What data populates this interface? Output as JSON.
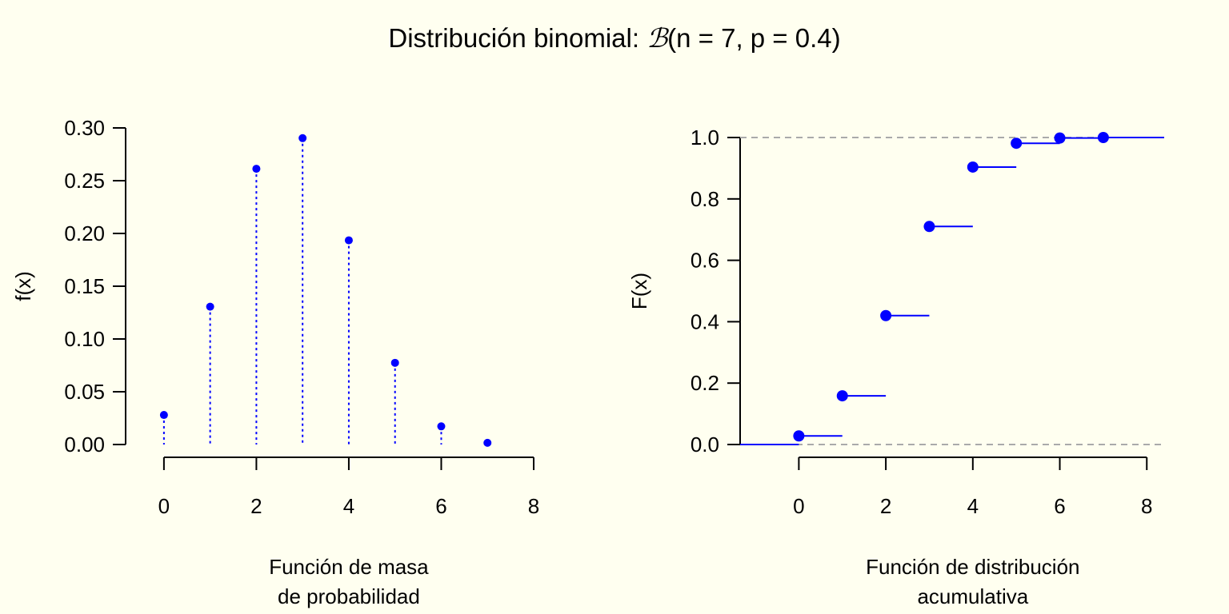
{
  "title": {
    "prefix": "Distribución binomial: ",
    "symbol": "ℬ",
    "params": "(n = 7, p = 0.4)"
  },
  "colors": {
    "background": "#FFFFF0",
    "series": "#0000FF",
    "reference": "#AAAAAA",
    "axis": "#000000"
  },
  "chart_data": [
    {
      "type": "scatter",
      "subtype": "pmf-stem",
      "title": "",
      "xlabel_lines": [
        "Función de masa",
        "de probabilidad"
      ],
      "ylabel": "f(x)",
      "x": [
        0,
        1,
        2,
        3,
        4,
        5,
        6,
        7
      ],
      "y": [
        0.028,
        0.1306,
        0.2613,
        0.2903,
        0.1935,
        0.0774,
        0.0172,
        0.0016
      ],
      "xlim": [
        -0.5,
        8
      ],
      "ylim": [
        0,
        0.3
      ],
      "xticks": [
        0,
        2,
        4,
        6,
        8
      ],
      "xtick_labels": [
        "0",
        "2",
        "4",
        "6",
        "8"
      ],
      "yticks": [
        0,
        0.05,
        0.1,
        0.15,
        0.2,
        0.25,
        0.3
      ],
      "ytick_labels": [
        "0.00",
        "0.05",
        "0.10",
        "0.15",
        "0.20",
        "0.25",
        "0.30"
      ]
    },
    {
      "type": "line",
      "subtype": "cdf-step",
      "title": "",
      "xlabel_lines": [
        "Función de distribución",
        "acumulativa"
      ],
      "ylabel": "F(x)",
      "x": [
        0,
        1,
        2,
        3,
        4,
        5,
        6,
        7
      ],
      "y": [
        0.028,
        0.1586,
        0.4199,
        0.7102,
        0.9037,
        0.9812,
        0.9984,
        1.0
      ],
      "xlim": [
        -1.35,
        8.4
      ],
      "ylim": [
        0,
        1.0
      ],
      "reference_lines": [
        0,
        1
      ],
      "xticks": [
        0,
        2,
        4,
        6,
        8
      ],
      "xtick_labels": [
        "0",
        "2",
        "4",
        "6",
        "8"
      ],
      "yticks": [
        0,
        0.2,
        0.4,
        0.6,
        0.8,
        1.0
      ],
      "ytick_labels": [
        "0.0",
        "0.2",
        "0.4",
        "0.6",
        "0.8",
        "1.0"
      ]
    }
  ]
}
